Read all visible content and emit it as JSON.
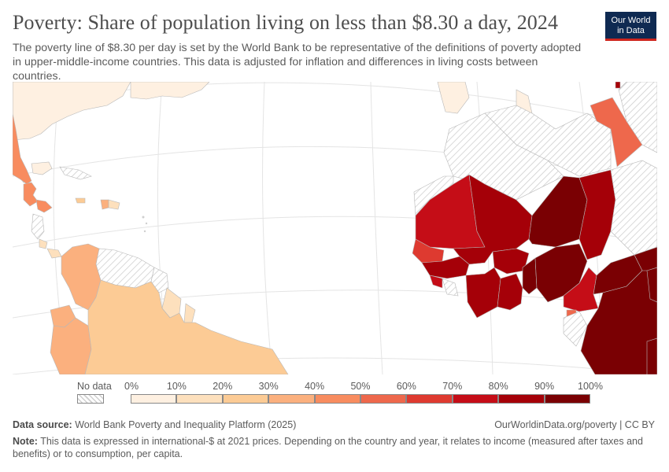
{
  "header": {
    "title": "Poverty: Share of population living on less than $8.30 a day, 2024",
    "subtitle": "The poverty line of $8.30 per day is set by the World Bank to be representative of the definitions of poverty adopted in upper-middle-income countries. This data is adjusted for inflation and differences in living costs between countries.",
    "logo_line1": "Our World",
    "logo_line2": "in Data"
  },
  "legend": {
    "no_data_label": "No data",
    "bins": [
      {
        "from": 0,
        "to": 10,
        "color": "#fef0e1"
      },
      {
        "from": 10,
        "to": 20,
        "color": "#fde0bd"
      },
      {
        "from": 20,
        "to": 30,
        "color": "#fccb95"
      },
      {
        "from": 30,
        "to": 40,
        "color": "#fbb07e"
      },
      {
        "from": 40,
        "to": 50,
        "color": "#f88c5f"
      },
      {
        "from": 50,
        "to": 60,
        "color": "#ee684c"
      },
      {
        "from": 60,
        "to": 70,
        "color": "#de3a30"
      },
      {
        "from": 70,
        "to": 80,
        "color": "#c50d17"
      },
      {
        "from": 80,
        "to": 90,
        "color": "#a50008"
      },
      {
        "from": 90,
        "to": 100,
        "color": "#7a0003"
      }
    ],
    "tick_labels": [
      "0%",
      "10%",
      "20%",
      "30%",
      "40%",
      "50%",
      "60%",
      "70%",
      "80%",
      "90%",
      "100%"
    ]
  },
  "map": {
    "nodata_color": "#e6e6e6",
    "ocean_color": "#ffffff",
    "graticule_color": "#e4e4e4"
  },
  "footer": {
    "source_label": "Data source:",
    "source_text": "World Bank Poverty and Inequality Platform (2025)",
    "link_text": "OurWorldinData.org/poverty | CC BY",
    "note_label": "Note:",
    "note_text": "This data is expressed in international-$ at 2021 prices. Depending on the country and year, it relates to income (measured after taxes and benefits) or to consumption, per capita."
  }
}
